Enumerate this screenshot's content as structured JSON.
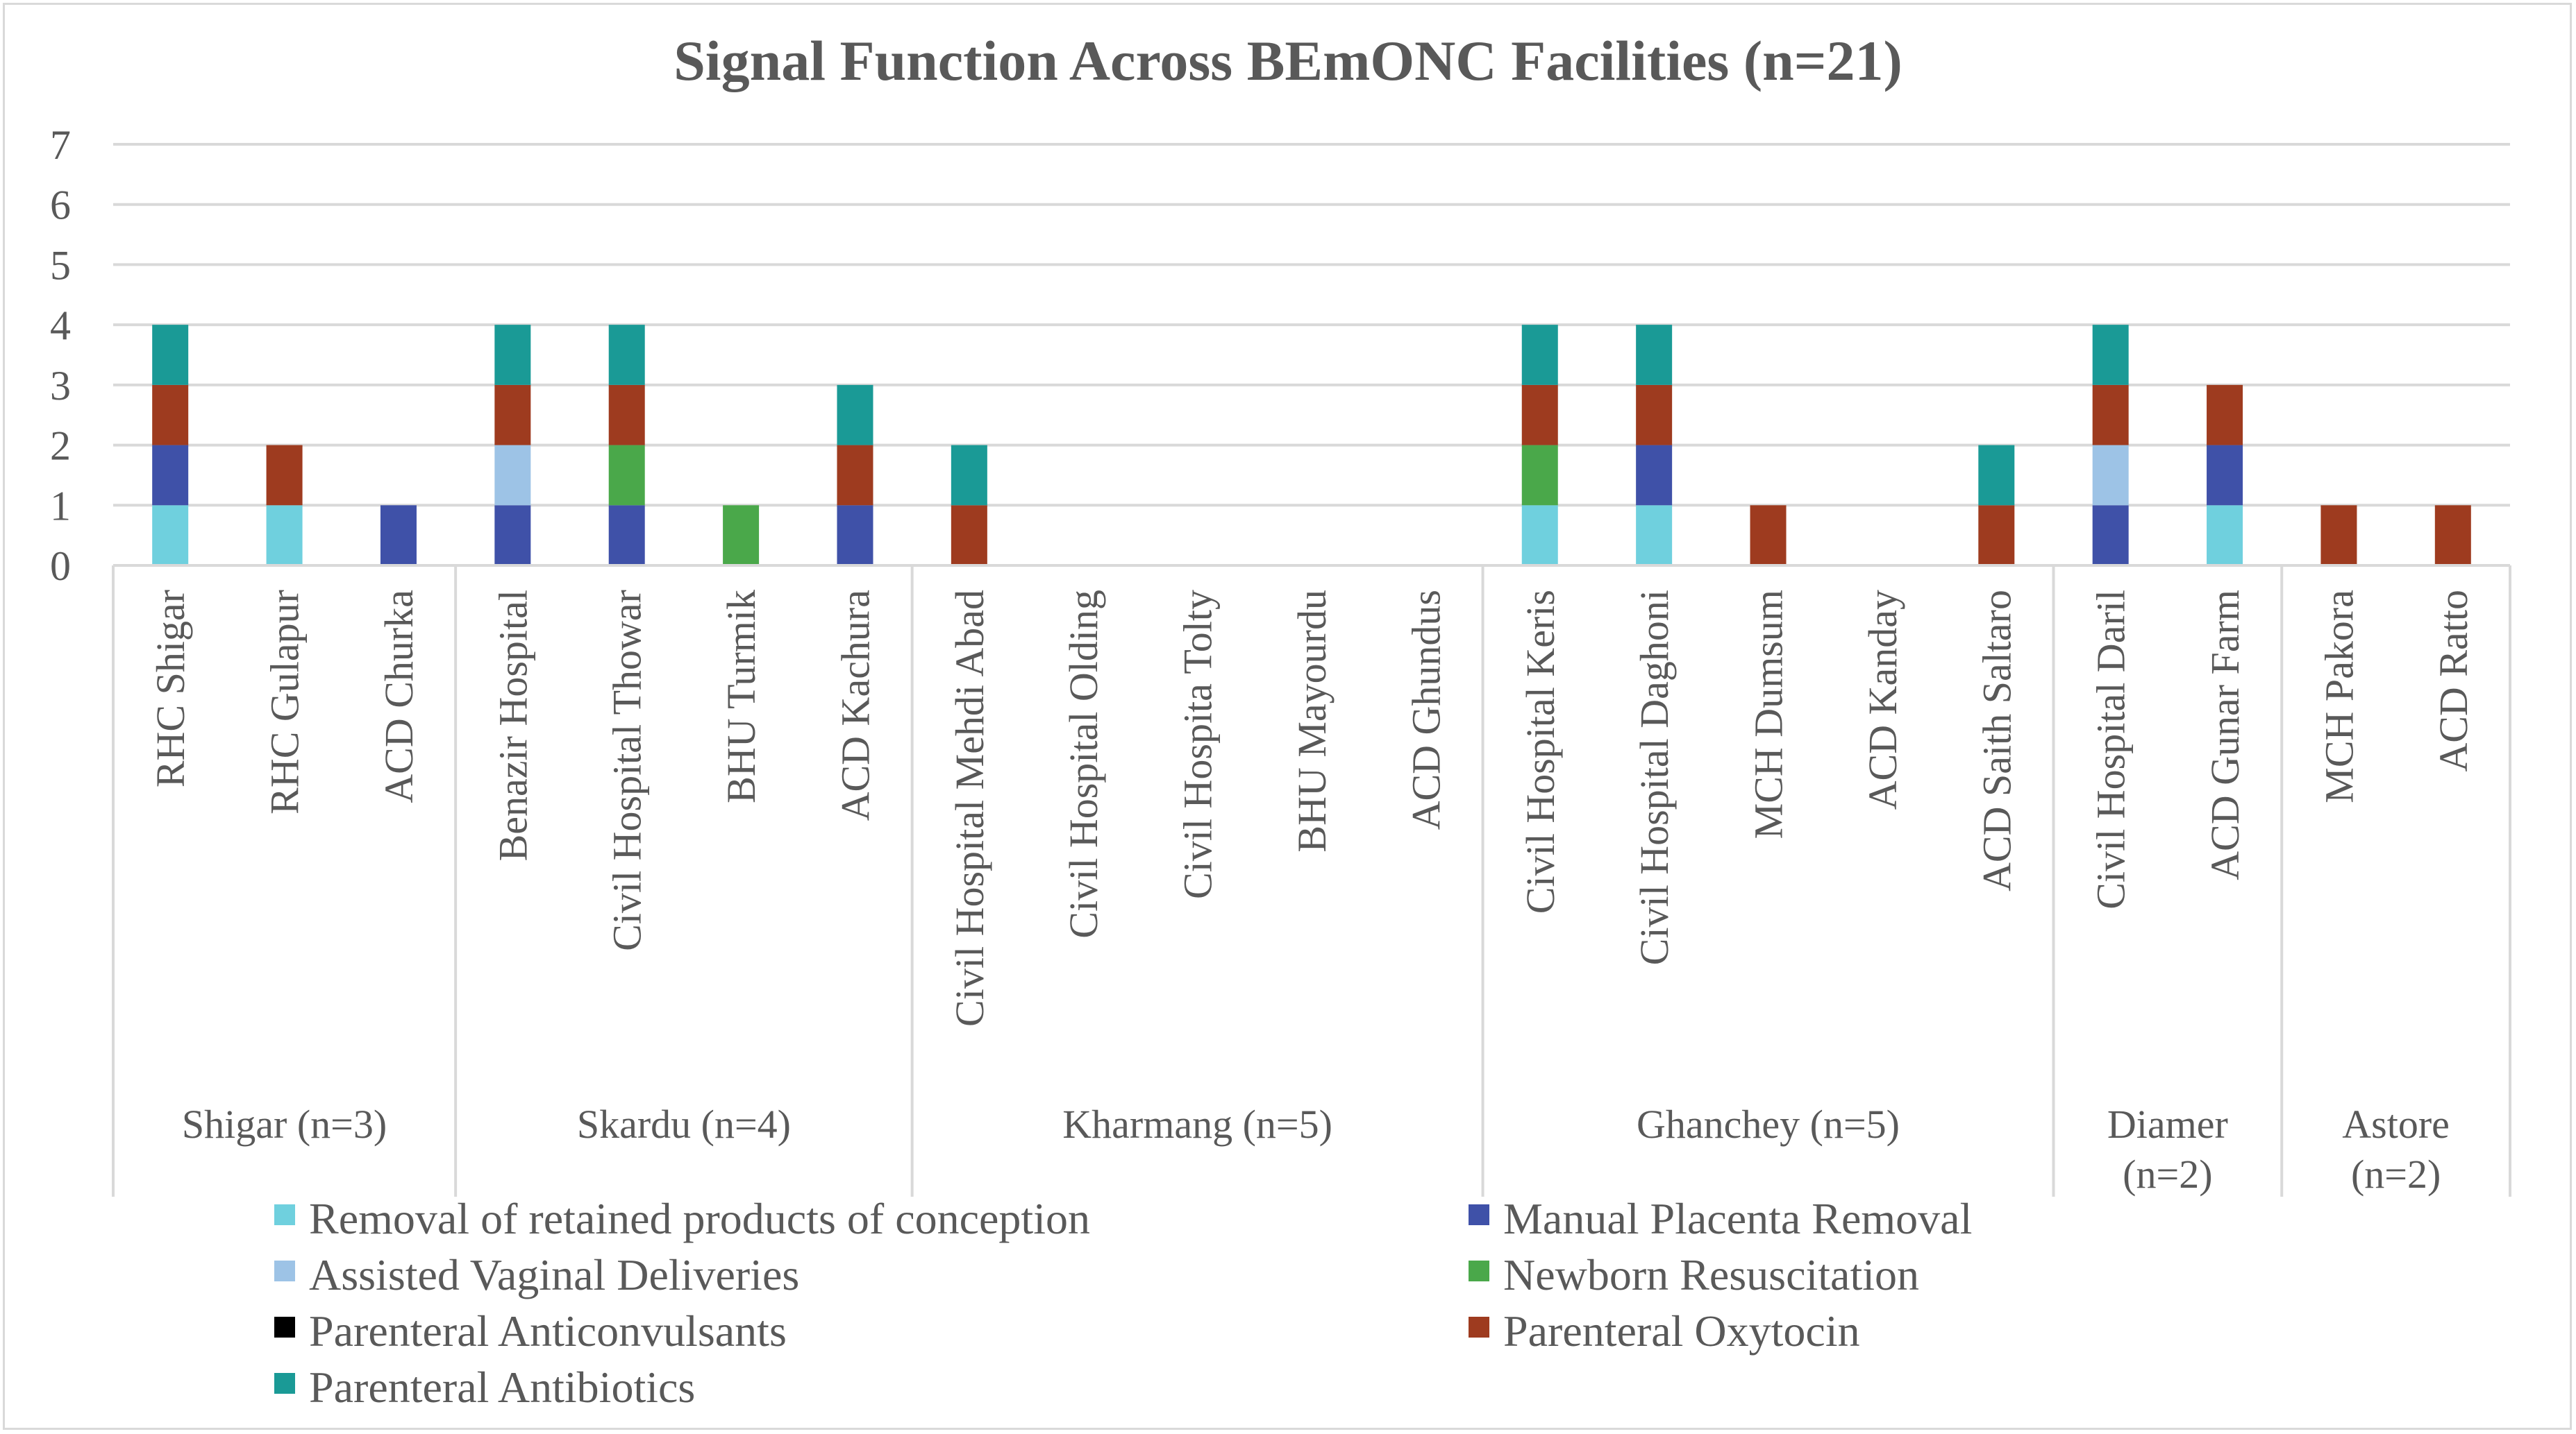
{
  "chart_data": {
    "type": "bar",
    "stacked": true,
    "title": "Signal Function Across BEmONC Facilities (n=21)",
    "ylim": [
      0,
      7
    ],
    "yticks": [
      "0",
      "1",
      "2",
      "3",
      "4",
      "5",
      "6",
      "7"
    ],
    "grid": true,
    "legend_position": "bottom",
    "categories": [
      "RHC Shigar",
      "RHC Gulapur",
      "ACD Churka",
      "Benazir Hospital",
      "Civil Hospital Thowar",
      "BHU Turmik",
      "ACD Kachura",
      "Civil Hospital Mehdi Abad",
      "Civil Hospital Olding",
      "Civil Hospita Tolty",
      "BHU Mayourdu",
      "ACD Ghundus",
      "Civil Hospital Keris",
      "Civil Hospital Daghoni",
      "MCH Dumsum",
      "ACD Kanday",
      "ACD Saith Saltaro",
      "Civil Hospital Daril",
      "ACD Gunar Farm",
      "MCH Pakora",
      "ACD Ratto"
    ],
    "groups": [
      {
        "label": "Shigar (n=3)",
        "count": 3
      },
      {
        "label": "Skardu (n=4)",
        "count": 4
      },
      {
        "label": "Kharmang (n=5)",
        "count": 5
      },
      {
        "label": "Ghanchey (n=5)",
        "count": 5
      },
      {
        "label": "Diamer (n=2)",
        "count": 2
      },
      {
        "label": "Astore (n=2)",
        "count": 2
      }
    ],
    "series": [
      {
        "name": "Removal of retained products of conception",
        "color": "#6fd0de",
        "values": [
          1,
          1,
          0,
          0,
          0,
          0,
          0,
          0,
          0,
          0,
          0,
          0,
          1,
          1,
          0,
          0,
          0,
          0,
          1,
          0,
          0
        ]
      },
      {
        "name": "Manual Placenta Removal",
        "color": "#3f51a8",
        "values": [
          1,
          0,
          1,
          1,
          1,
          0,
          1,
          0,
          0,
          0,
          0,
          0,
          0,
          1,
          0,
          0,
          0,
          1,
          1,
          0,
          0
        ]
      },
      {
        "name": "Assisted Vaginal Deliveries",
        "color": "#9dc3e6",
        "values": [
          0,
          0,
          0,
          1,
          0,
          0,
          0,
          0,
          0,
          0,
          0,
          0,
          0,
          0,
          0,
          0,
          0,
          1,
          0,
          0,
          0
        ]
      },
      {
        "name": "Newborn Resuscitation",
        "color": "#4aa84a",
        "values": [
          0,
          0,
          0,
          0,
          1,
          1,
          0,
          0,
          0,
          0,
          0,
          0,
          1,
          0,
          0,
          0,
          0,
          0,
          0,
          0,
          0
        ]
      },
      {
        "name": "Parenteral Anticonvulsants",
        "color": "#000000",
        "values": [
          0,
          0,
          0,
          0,
          0,
          0,
          0,
          0,
          0,
          0,
          0,
          0,
          0,
          0,
          0,
          0,
          0,
          0,
          0,
          0,
          0
        ]
      },
      {
        "name": "Parenteral Oxytocin",
        "color": "#9e3b1f",
        "values": [
          1,
          1,
          0,
          1,
          1,
          0,
          1,
          1,
          0,
          0,
          0,
          0,
          1,
          1,
          1,
          0,
          1,
          1,
          1,
          1,
          1
        ]
      },
      {
        "name": "Parenteral Antibiotics",
        "color": "#1a9a96",
        "values": [
          1,
          0,
          0,
          1,
          1,
          0,
          1,
          1,
          0,
          0,
          0,
          0,
          1,
          1,
          0,
          0,
          1,
          1,
          0,
          0,
          0
        ]
      }
    ]
  }
}
